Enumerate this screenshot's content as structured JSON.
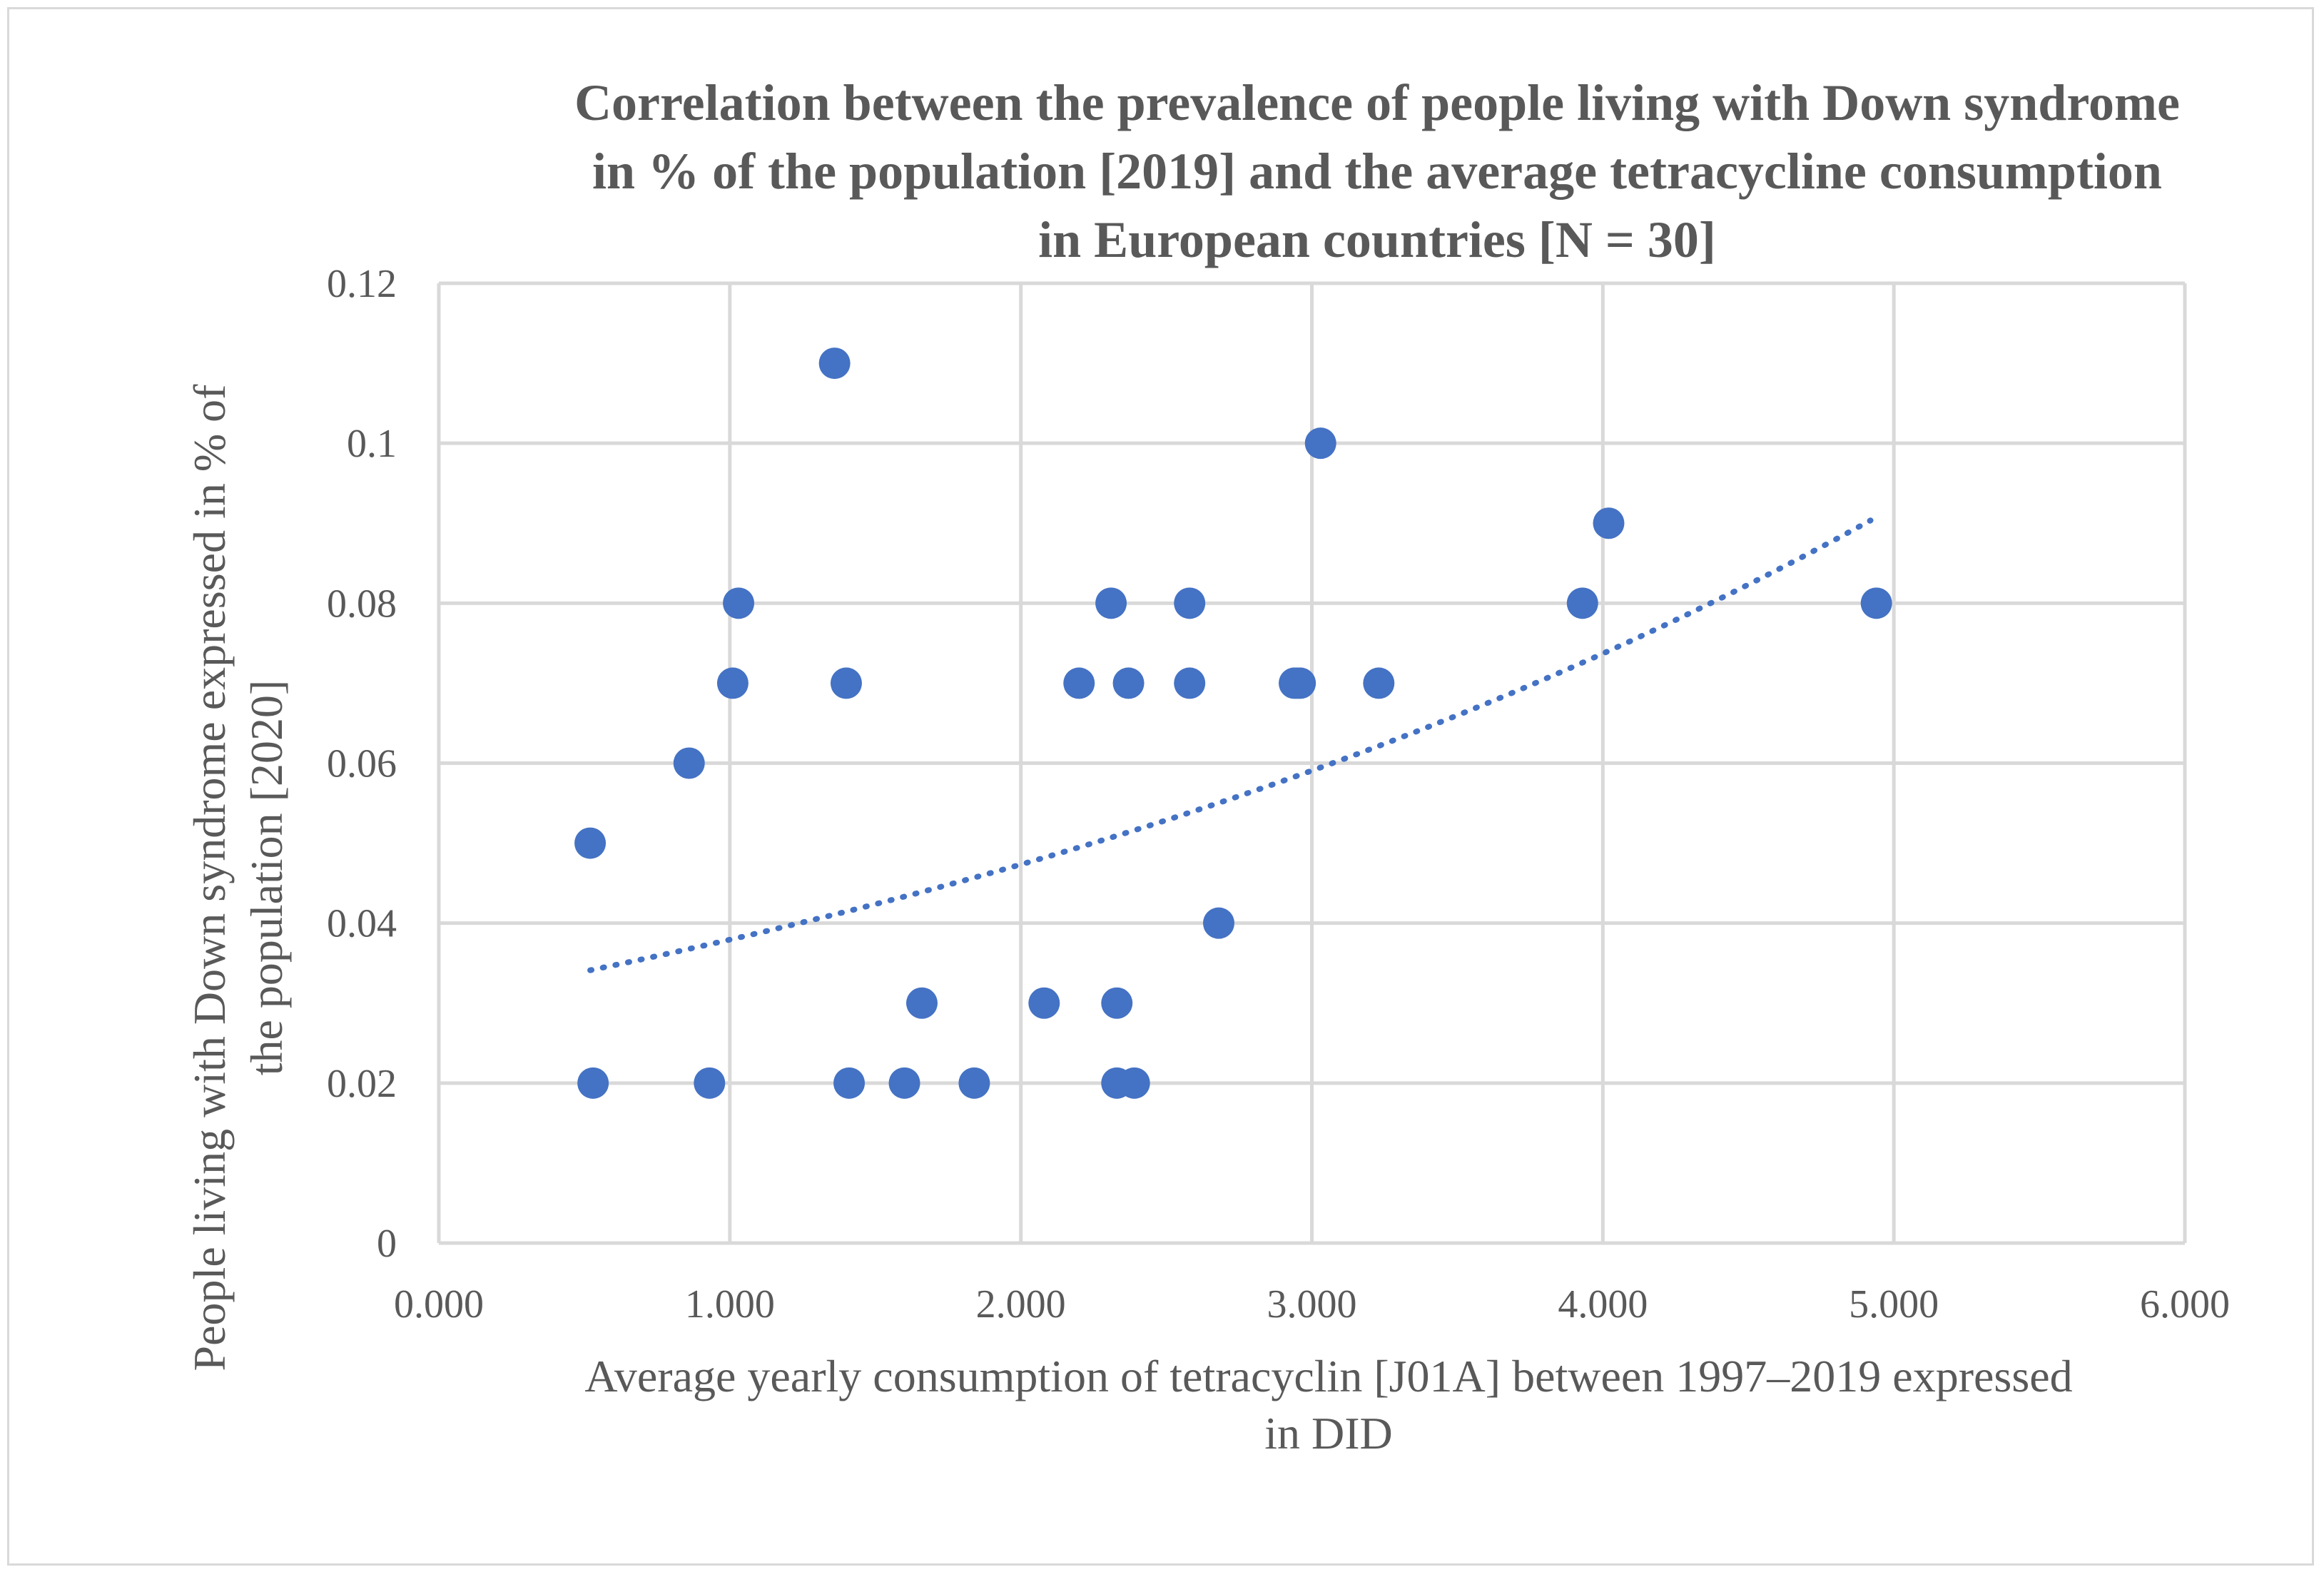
{
  "chart_data": {
    "type": "scatter",
    "title": [
      "Correlation between the prevalence of people living with Down syndrome",
      "in % of the population [2019] and the average tetracycline consumption",
      "in European countries [N = 30]"
    ],
    "xlabel": [
      "Average yearly consumption of tetracyclin [J01A] between 1997–2019 expressed",
      "in DID"
    ],
    "ylabel": [
      "People living with Down syndrome expressed in % of",
      "the population [2020]"
    ],
    "xlim": [
      0,
      6
    ],
    "ylim": [
      0,
      0.12
    ],
    "x_ticks": [
      0,
      1,
      2,
      3,
      4,
      5,
      6
    ],
    "x_tick_labels": [
      "0.000",
      "1.000",
      "2.000",
      "3.000",
      "4.000",
      "5.000",
      "6.000"
    ],
    "y_ticks": [
      0,
      0.02,
      0.04,
      0.06,
      0.08,
      0.1,
      0.12
    ],
    "y_tick_labels": [
      "0",
      "0.02",
      "0.04",
      "0.06",
      "0.08",
      "0.1",
      "0.12"
    ],
    "grid": true,
    "color": "#4472c4",
    "points": [
      {
        "x": 0.52,
        "y": 0.05
      },
      {
        "x": 0.53,
        "y": 0.02
      },
      {
        "x": 0.86,
        "y": 0.06
      },
      {
        "x": 0.93,
        "y": 0.02
      },
      {
        "x": 1.01,
        "y": 0.07
      },
      {
        "x": 1.03,
        "y": 0.08
      },
      {
        "x": 1.36,
        "y": 0.11
      },
      {
        "x": 1.4,
        "y": 0.07
      },
      {
        "x": 1.41,
        "y": 0.02
      },
      {
        "x": 1.6,
        "y": 0.02
      },
      {
        "x": 1.66,
        "y": 0.03
      },
      {
        "x": 1.84,
        "y": 0.02
      },
      {
        "x": 2.08,
        "y": 0.03
      },
      {
        "x": 2.2,
        "y": 0.07
      },
      {
        "x": 2.31,
        "y": 0.08
      },
      {
        "x": 2.33,
        "y": 0.03
      },
      {
        "x": 2.33,
        "y": 0.02
      },
      {
        "x": 2.37,
        "y": 0.07
      },
      {
        "x": 2.39,
        "y": 0.02
      },
      {
        "x": 2.58,
        "y": 0.08
      },
      {
        "x": 2.58,
        "y": 0.07
      },
      {
        "x": 2.68,
        "y": 0.04
      },
      {
        "x": 2.94,
        "y": 0.07
      },
      {
        "x": 2.96,
        "y": 0.07
      },
      {
        "x": 3.03,
        "y": 0.1
      },
      {
        "x": 3.23,
        "y": 0.07
      },
      {
        "x": 3.93,
        "y": 0.08
      },
      {
        "x": 4.02,
        "y": 0.09
      },
      {
        "x": 4.94,
        "y": 0.08
      },
      {
        "x": 2.95,
        "y": 0.07
      }
    ],
    "trendline": {
      "type": "exponential",
      "style": "dotted",
      "x_range": [
        0.52,
        4.92
      ],
      "a": 0.0304,
      "b": 0.2214
    }
  }
}
